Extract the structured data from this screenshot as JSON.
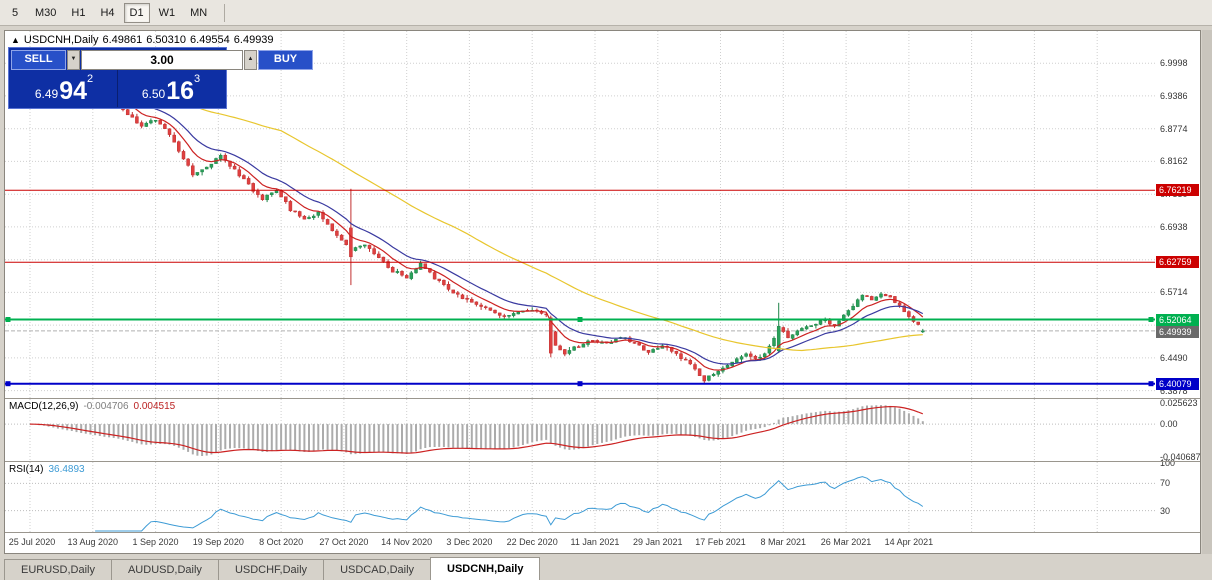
{
  "toolbar": {
    "timeframes": [
      {
        "label": "5",
        "active": false
      },
      {
        "label": "M30",
        "active": false
      },
      {
        "label": "H1",
        "active": false
      },
      {
        "label": "H4",
        "active": false
      },
      {
        "label": "D1",
        "active": true
      },
      {
        "label": "W1",
        "active": false
      },
      {
        "label": "MN",
        "active": false
      }
    ]
  },
  "chart": {
    "caption": {
      "expander": "▲",
      "symbol": "USDCNH,Daily",
      "open": "6.49861",
      "high": "6.50310",
      "low": "6.49554",
      "close": "6.49939"
    },
    "trade_panel": {
      "sell_label": "SELL",
      "buy_label": "BUY",
      "volume": "3.00",
      "volume_down_arrow": "▼",
      "volume_up_arrow": "▲",
      "bid": {
        "stem": "6.49",
        "pips": "94",
        "pipette": "2"
      },
      "ask": {
        "stem": "6.50",
        "pips": "16",
        "pipette": "3"
      }
    }
  },
  "macd_panel": {
    "name": "MACD(12,26,9)",
    "value": "-0.004706",
    "signal": "0.004515"
  },
  "rsi_panel": {
    "name": "RSI(14)",
    "value": "36.4893"
  },
  "tabs": [
    {
      "label": "EURUSD,Daily",
      "active": false
    },
    {
      "label": "AUDUSD,Daily",
      "active": false
    },
    {
      "label": "USDCHF,Daily",
      "active": false
    },
    {
      "label": "USDCAD,Daily",
      "active": false
    },
    {
      "label": "USDCNH,Daily",
      "active": true
    }
  ],
  "chart_data": {
    "type": "candlestick",
    "symbol": "USDCNH",
    "period": "Daily",
    "n_bars": 193,
    "last_ohlc": {
      "open": 6.49861,
      "high": 6.5031,
      "low": 6.49554,
      "close": 6.49939
    },
    "price_anchors": [
      [
        0,
        7.0
      ],
      [
        6,
        6.976
      ],
      [
        12,
        6.952
      ],
      [
        18,
        6.93
      ],
      [
        21,
        6.905
      ],
      [
        24,
        6.88
      ],
      [
        27,
        6.896
      ],
      [
        30,
        6.868
      ],
      [
        33,
        6.822
      ],
      [
        35,
        6.792
      ],
      [
        38,
        6.806
      ],
      [
        41,
        6.828
      ],
      [
        44,
        6.8
      ],
      [
        47,
        6.772
      ],
      [
        50,
        6.746
      ],
      [
        53,
        6.762
      ],
      [
        56,
        6.726
      ],
      [
        59,
        6.708
      ],
      [
        62,
        6.72
      ],
      [
        65,
        6.688
      ],
      [
        69,
        6.648
      ],
      [
        72,
        6.662
      ],
      [
        75,
        6.636
      ],
      [
        78,
        6.612
      ],
      [
        81,
        6.6
      ],
      [
        84,
        6.625
      ],
      [
        87,
        6.598
      ],
      [
        90,
        6.576
      ],
      [
        93,
        6.56
      ],
      [
        96,
        6.55
      ],
      [
        99,
        6.538
      ],
      [
        102,
        6.528
      ],
      [
        105,
        6.532
      ],
      [
        108,
        6.54
      ],
      [
        111,
        6.528
      ],
      [
        113,
        6.47
      ],
      [
        115,
        6.458
      ],
      [
        118,
        6.472
      ],
      [
        121,
        6.482
      ],
      [
        124,
        6.474
      ],
      [
        127,
        6.49
      ],
      [
        130,
        6.478
      ],
      [
        133,
        6.46
      ],
      [
        136,
        6.473
      ],
      [
        139,
        6.455
      ],
      [
        142,
        6.438
      ],
      [
        145,
        6.408
      ],
      [
        148,
        6.425
      ],
      [
        151,
        6.442
      ],
      [
        154,
        6.455
      ],
      [
        157,
        6.448
      ],
      [
        159,
        6.47
      ],
      [
        161,
        6.505
      ],
      [
        163,
        6.488
      ],
      [
        165,
        6.502
      ],
      [
        168,
        6.512
      ],
      [
        171,
        6.518
      ],
      [
        173,
        6.507
      ],
      [
        175,
        6.53
      ],
      [
        177,
        6.548
      ],
      [
        179,
        6.565
      ],
      [
        181,
        6.558
      ],
      [
        183,
        6.57
      ],
      [
        185,
        6.56
      ],
      [
        187,
        6.546
      ],
      [
        189,
        6.528
      ],
      [
        191,
        6.51
      ],
      [
        192,
        6.4994
      ]
    ],
    "special_bars": [
      {
        "index": 69,
        "open": 6.692,
        "close": 6.638,
        "high": 6.765,
        "low": 6.585
      },
      {
        "index": 112,
        "open": 6.524,
        "close": 6.458,
        "high": 6.528,
        "low": 6.45
      },
      {
        "index": 145,
        "low": 6.4008
      },
      {
        "index": 161,
        "open": 6.462,
        "close": 6.508,
        "high": 6.552,
        "low": 6.458
      }
    ],
    "y_axis": {
      "range": [
        6.374,
        7.06
      ],
      "ticks": [
        "6.9998",
        "6.9386",
        "6.8774",
        "6.8162",
        "6.7550",
        "6.6938",
        "6.6326",
        "6.5714",
        "6.5102",
        "6.4490",
        "6.3878"
      ]
    },
    "x_axis": {
      "labels": [
        "25 Jul 2020",
        "13 Aug 2020",
        "1 Sep 2020",
        "19 Sep 2020",
        "8 Oct 2020",
        "27 Oct 2020",
        "14 Nov 2020",
        "3 Dec 2020",
        "22 Dec 2020",
        "11 Jan 2021",
        "29 Jan 2021",
        "17 Feb 2021",
        "8 Mar 2021",
        "26 Mar 2021",
        "14 Apr 2021"
      ],
      "bars_per_label": 13.5
    },
    "levels": [
      {
        "price": 6.76219,
        "label": "6.76219",
        "color": "#cc0000",
        "width": 1,
        "handles": false,
        "name": "resistance-line-1"
      },
      {
        "price": 6.62759,
        "label": "6.62759",
        "color": "#cc0000",
        "width": 1,
        "handles": false,
        "name": "resistance-line-2"
      },
      {
        "price": 6.52064,
        "label": "6.52064",
        "color": "#00b050",
        "width": 2,
        "handles": true,
        "name": "support-line-green"
      },
      {
        "price": 6.40079,
        "label": "6.40079",
        "color": "#0000c8",
        "width": 2,
        "handles": true,
        "name": "support-line-blue"
      }
    ],
    "current_price": {
      "value": 6.49939,
      "label": "6.49939",
      "badge_color": "#6a6a6a",
      "line_color": "#b0b0b0"
    },
    "moving_averages": [
      {
        "type": "ema",
        "period": 8,
        "color": "#cc2222"
      },
      {
        "type": "ema",
        "period": 16,
        "color": "#3a3aa0"
      },
      {
        "type": "sma",
        "period": 55,
        "color": "#e8c62e"
      }
    ],
    "candle_colors": {
      "up": "#2aa05a",
      "down": "#df4040",
      "up_wick": "#1f8448",
      "down_wick": "#c03030"
    },
    "grid_color": "#cfcfcf",
    "macd": {
      "fast": 12,
      "slow": 26,
      "signal": 9,
      "range": [
        -0.0455,
        0.031
      ],
      "ticks": [
        {
          "v": 0.025623,
          "label": "0.025623"
        },
        {
          "v": 0,
          "label": "0.00"
        },
        {
          "v": -0.040687,
          "label": "-0.040687"
        }
      ],
      "histogram_color": "#ababab",
      "signal_color": "#cc2222",
      "current_value": -0.004706,
      "current_signal": 0.004515
    },
    "rsi": {
      "period": 14,
      "range": [
        0,
        100
      ],
      "levels": [
        30,
        70
      ],
      "ticks": [
        {
          "v": 100,
          "label": "100"
        },
        {
          "v": 70,
          "label": "70"
        },
        {
          "v": 30,
          "label": "30"
        }
      ],
      "line_color": "#3d9bd5",
      "level_color": "#bdbdbd",
      "current_value": 36.4893
    }
  }
}
